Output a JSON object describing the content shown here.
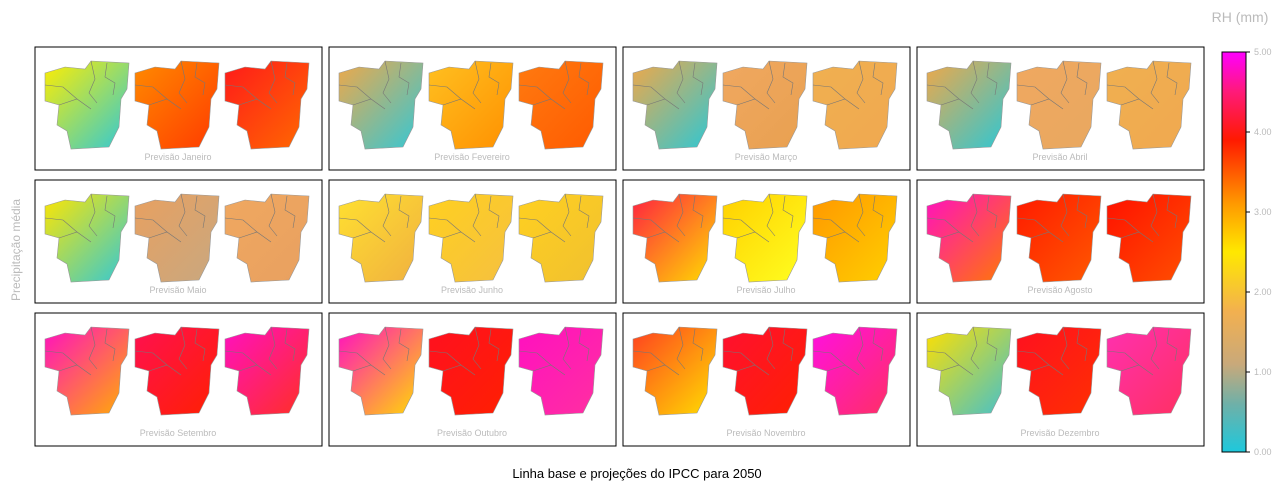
{
  "figure": {
    "y_label": "Precipitação média",
    "caption": "Linha base e projeções do IPCC para 2050"
  },
  "colorbar": {
    "title": "RH (mm)",
    "ticks": [
      "0.00",
      "1.00",
      "2.00",
      "3.00",
      "4.00",
      "5.00"
    ]
  },
  "panels": [
    {
      "label": "Previsão Janeiro"
    },
    {
      "label": "Previsão Fevereiro"
    },
    {
      "label": "Previsão Março"
    },
    {
      "label": "Previsão Abril"
    },
    {
      "label": "Previsão Maio"
    },
    {
      "label": "Previsão Junho"
    },
    {
      "label": "Previsão Julho"
    },
    {
      "label": "Previsão Agosto"
    },
    {
      "label": "Previsão Setembro"
    },
    {
      "label": "Previsão Outubro"
    },
    {
      "label": "Previsão Novembro"
    },
    {
      "label": "Previsão Dezembro"
    }
  ]
}
